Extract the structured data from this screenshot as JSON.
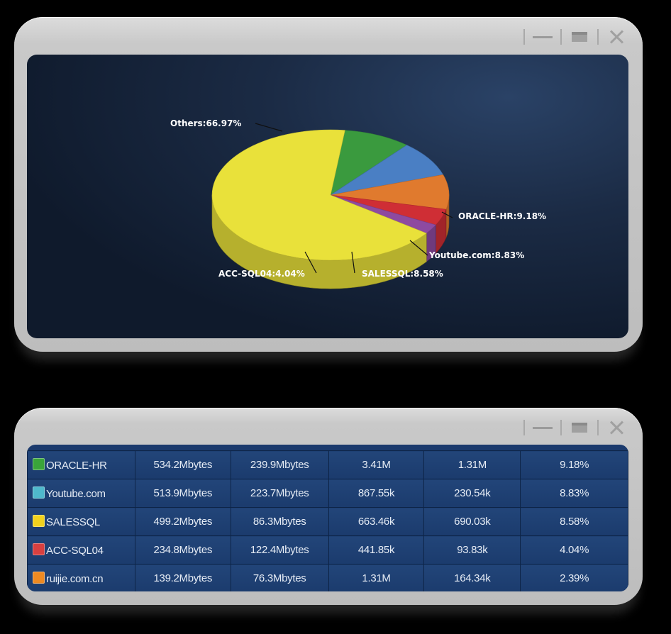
{
  "chart_window": {
    "controls": {
      "minimize": "minimize",
      "maximize": "maximize",
      "close": "close"
    }
  },
  "chart_data": {
    "type": "pie",
    "slices": [
      {
        "name": "ORACLE-HR",
        "value": 9.18,
        "label": "ORACLE-HR:9.18%",
        "color": "#3a9a3e"
      },
      {
        "name": "Youtube.com",
        "value": 8.83,
        "label": "Youtube.com:8.83%",
        "color": "#4a7fc4"
      },
      {
        "name": "SALESSQL",
        "value": 8.58,
        "label": "SALESSQL:8.58%",
        "color": "#e07a2e"
      },
      {
        "name": "ACC-SQL04",
        "value": 4.04,
        "label": "ACC-SQL04:4.04%",
        "color": "#cf2e35"
      },
      {
        "name": "",
        "value": 2.39,
        "label": "",
        "color": "#8e4aa0"
      },
      {
        "name": "Others",
        "value": 66.97,
        "label": "Others:66.97%",
        "color": "#e9e13a"
      }
    ]
  },
  "table": {
    "rows": [
      {
        "name": "ORACLE-HR",
        "color": "#3aa43a",
        "c1": "534.2Mbytes",
        "c2": "239.9Mbytes",
        "c3": "3.41M",
        "c4": "1.31M",
        "c5": "9.18%"
      },
      {
        "name": "Youtube.com",
        "color": "#4fb9cc",
        "c1": "513.9Mbytes",
        "c2": "223.7Mbytes",
        "c3": "867.55k",
        "c4": "230.54k",
        "c5": "8.83%"
      },
      {
        "name": "SALESSQL",
        "color": "#f2d21e",
        "c1": "499.2Mbytes",
        "c2": "86.3Mbytes",
        "c3": "663.46k",
        "c4": "690.03k",
        "c5": "8.58%"
      },
      {
        "name": "ACC-SQL04",
        "color": "#d84040",
        "c1": "234.8Mbytes",
        "c2": "122.4Mbytes",
        "c3": "441.85k",
        "c4": "93.83k",
        "c5": "4.04%"
      },
      {
        "name": "ruijie.com.cn",
        "color": "#ee8a22",
        "c1": "139.2Mbytes",
        "c2": "76.3Mbytes",
        "c3": "1.31M",
        "c4": "164.34k",
        "c5": "2.39%"
      }
    ]
  }
}
